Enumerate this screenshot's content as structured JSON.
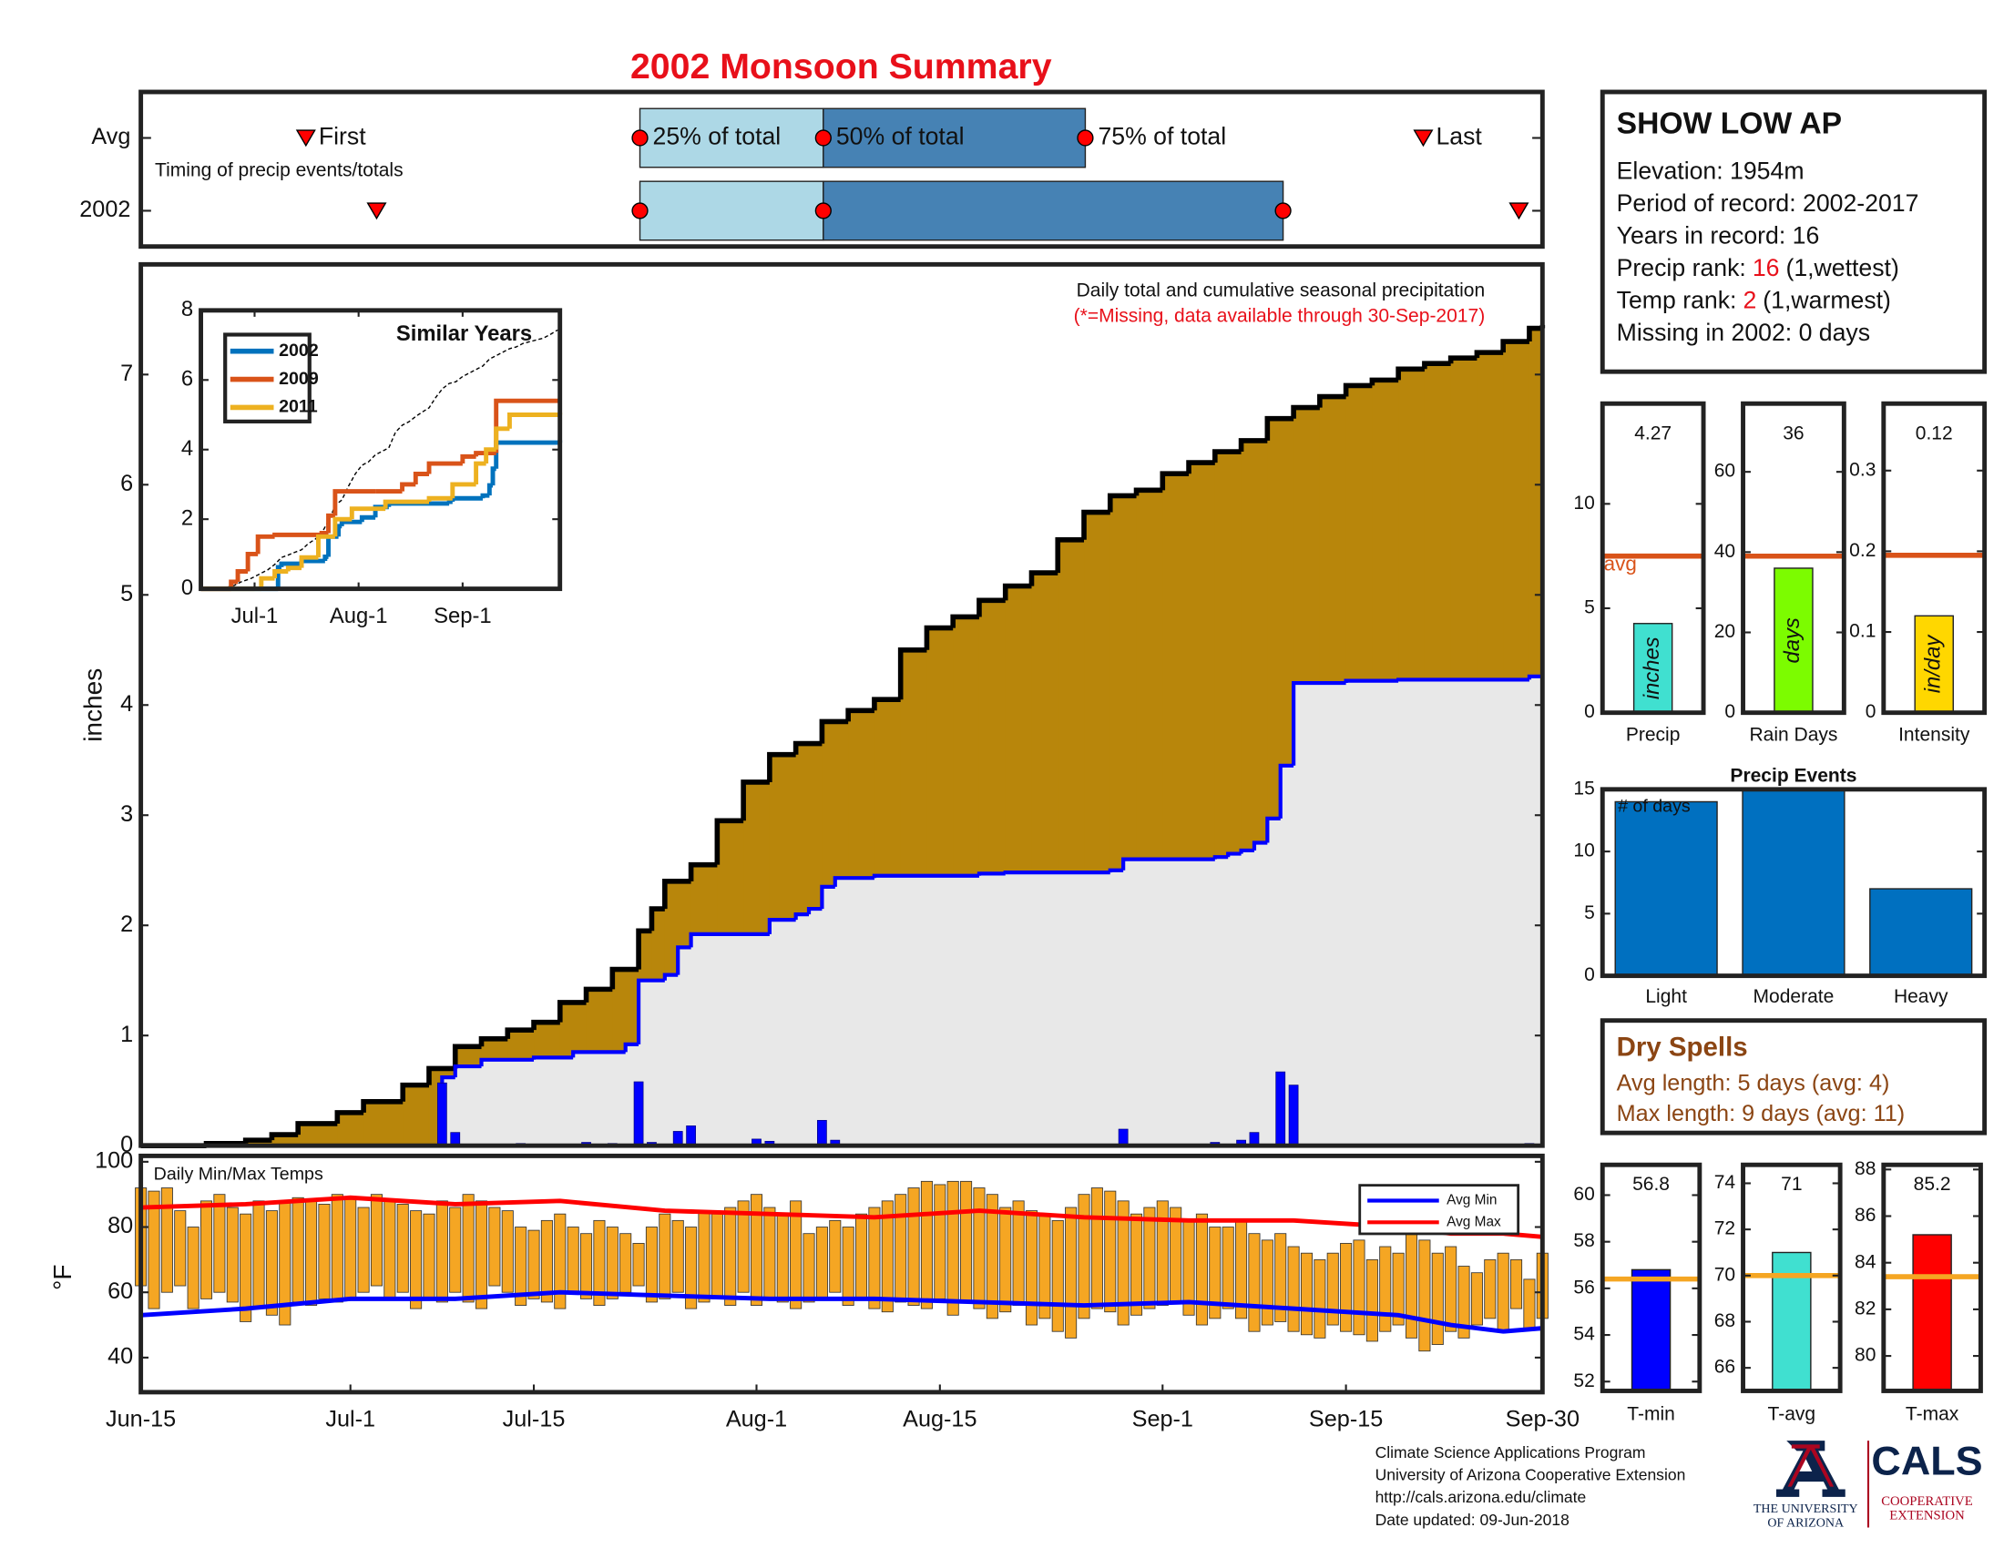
{
  "title": "2002 Monsoon Summary",
  "chart_data": [
    {
      "type": "timing",
      "annotation": "Timing of precip events/totals",
      "xlim": [
        0,
        107
      ],
      "labels": {
        "first": "First",
        "last": "Last",
        "q25": "25% of total",
        "q50": "50% of total",
        "q75": "75% of total"
      },
      "rows": [
        {
          "name": "Avg",
          "first": 12.6,
          "q25": 38.1,
          "q50": 52.1,
          "q75": 72.1,
          "last": 97.9
        },
        {
          "name": "2002",
          "first": 18,
          "q25": 38.1,
          "q50": 52.1,
          "q75": 87.2,
          "last": 105.2
        }
      ],
      "light_color": "#add8e6",
      "dark_color": "#4682b4",
      "marker_color": "#ff0000"
    },
    {
      "type": "step-area",
      "annotation": "Daily total and cumulative seasonal precipitation",
      "note": "(*=Missing, data available through 30-Sep-2017)",
      "ylabel": "inches",
      "xlim": [
        0,
        107
      ],
      "ylim": [
        0,
        8
      ],
      "yticks": [
        0,
        1,
        2,
        3,
        4,
        5,
        6,
        7
      ],
      "series": [
        {
          "color": "#b8860b",
          "outline": "#000000",
          "x": [
            0,
            5,
            8,
            10,
            12,
            15,
            17,
            20,
            22,
            24,
            26,
            28,
            30,
            32,
            34,
            36,
            38,
            39,
            40,
            42,
            44,
            46,
            48,
            50,
            52,
            54,
            56,
            58,
            60,
            62,
            64,
            66,
            68,
            70,
            72,
            74,
            76,
            78,
            80,
            82,
            84,
            86,
            88,
            90,
            92,
            94,
            96,
            98,
            100,
            102,
            104,
            106,
            107
          ],
          "values": [
            0,
            0.02,
            0.05,
            0.1,
            0.2,
            0.3,
            0.4,
            0.55,
            0.7,
            0.9,
            0.97,
            1.05,
            1.12,
            1.3,
            1.42,
            1.6,
            1.95,
            2.15,
            2.4,
            2.55,
            2.95,
            3.3,
            3.55,
            3.65,
            3.85,
            3.95,
            4.05,
            4.5,
            4.7,
            4.8,
            4.95,
            5.08,
            5.2,
            5.5,
            5.75,
            5.9,
            5.95,
            6.1,
            6.2,
            6.3,
            6.4,
            6.6,
            6.7,
            6.8,
            6.9,
            6.95,
            7.05,
            7.1,
            7.15,
            7.2,
            7.3,
            7.42,
            7.45
          ]
        },
        {
          "color": "#e8e8e8",
          "outline": "#0000ff",
          "x": [
            0,
            23,
            24,
            26,
            30,
            33,
            37,
            38,
            40,
            41,
            42,
            48,
            50,
            51,
            52,
            53,
            56,
            64,
            66,
            74,
            75,
            82,
            83,
            84,
            85,
            86,
            87,
            88,
            92,
            96,
            106,
            107
          ],
          "values": [
            0,
            0.62,
            0.72,
            0.78,
            0.8,
            0.85,
            0.92,
            1.5,
            1.55,
            1.8,
            1.92,
            2.05,
            2.1,
            2.15,
            2.35,
            2.43,
            2.45,
            2.47,
            2.48,
            2.5,
            2.6,
            2.62,
            2.65,
            2.68,
            2.75,
            2.97,
            3.45,
            4.2,
            4.22,
            4.23,
            4.26,
            4.27
          ]
        }
      ],
      "daily": {
        "color": "#0000ff",
        "x": [
          23,
          24,
          29,
          34,
          36,
          38,
          39,
          41,
          42,
          47,
          48,
          52,
          53,
          75,
          82,
          84,
          85,
          87,
          88,
          106
        ],
        "values": [
          0.57,
          0.12,
          0.02,
          0.03,
          0.02,
          0.58,
          0.03,
          0.13,
          0.18,
          0.06,
          0.04,
          0.23,
          0.05,
          0.15,
          0.03,
          0.05,
          0.12,
          0.67,
          0.55,
          0.02
        ]
      }
    },
    {
      "type": "line",
      "title": "Similar Years",
      "xlim": [
        0,
        107
      ],
      "ylim": [
        0,
        8
      ],
      "yticks": [
        0,
        2,
        4,
        6,
        8
      ],
      "xticks": [
        {
          "value": 16,
          "label": "Jul-1"
        },
        {
          "value": 47,
          "label": "Aug-1"
        },
        {
          "value": 78,
          "label": "Sep-1"
        }
      ],
      "legend": "upper left",
      "reference_color": "#000000",
      "series": [
        {
          "name": "2002",
          "color": "#0072bd",
          "x": [
            0,
            23,
            24,
            30,
            37,
            38,
            41,
            42,
            48,
            52,
            56,
            74,
            75,
            84,
            86,
            87,
            88,
            107
          ],
          "values": [
            0,
            0.62,
            0.72,
            0.8,
            0.92,
            1.5,
            1.8,
            1.92,
            2.05,
            2.35,
            2.45,
            2.5,
            2.6,
            2.68,
            2.97,
            3.45,
            4.2,
            4.27
          ]
        },
        {
          "name": "2009",
          "color": "#d95319",
          "x": [
            0,
            9,
            11,
            14,
            17,
            22,
            36,
            38,
            40,
            52,
            60,
            64,
            68,
            78,
            82,
            88,
            107
          ],
          "values": [
            0,
            0.2,
            0.5,
            1.0,
            1.5,
            1.55,
            1.6,
            2.1,
            2.8,
            2.8,
            3.0,
            3.3,
            3.6,
            3.8,
            3.9,
            5.4,
            5.4
          ]
        },
        {
          "name": "2011",
          "color": "#edb120",
          "x": [
            0,
            16,
            18,
            22,
            26,
            30,
            35,
            40,
            45,
            55,
            68,
            75,
            82,
            85,
            88,
            92,
            107
          ],
          "values": [
            0,
            0,
            0.3,
            0.5,
            0.6,
            0.9,
            1.5,
            2.0,
            2.3,
            2.5,
            2.6,
            3.0,
            3.6,
            4.0,
            4.6,
            5.0,
            5.06
          ]
        }
      ]
    },
    {
      "type": "range-bar",
      "title": "Daily Min/Max Temps",
      "ylabel": "°F",
      "xlim": [
        0,
        107
      ],
      "ylim": [
        29.4,
        101.8
      ],
      "yticks": [
        40,
        60,
        80,
        100
      ],
      "xticks": [
        {
          "value": 0,
          "label": "Jun-15"
        },
        {
          "value": 16,
          "label": "Jul-1"
        },
        {
          "value": 30,
          "label": "Jul-15"
        },
        {
          "value": 47,
          "label": "Aug-1"
        },
        {
          "value": 61,
          "label": "Aug-15"
        },
        {
          "value": 78,
          "label": "Sep-1"
        },
        {
          "value": 92,
          "label": "Sep-15"
        },
        {
          "value": 107,
          "label": "Sep-30"
        }
      ],
      "bar_color": "#f5a623",
      "legend": "upper right",
      "x": [
        0,
        1,
        2,
        3,
        4,
        5,
        6,
        7,
        8,
        9,
        10,
        11,
        12,
        13,
        14,
        15,
        16,
        17,
        18,
        19,
        20,
        21,
        22,
        23,
        24,
        25,
        26,
        27,
        28,
        29,
        30,
        31,
        32,
        33,
        34,
        35,
        36,
        37,
        38,
        39,
        40,
        41,
        42,
        43,
        44,
        45,
        46,
        47,
        48,
        49,
        50,
        51,
        52,
        53,
        54,
        55,
        56,
        57,
        58,
        59,
        60,
        61,
        62,
        63,
        64,
        65,
        66,
        67,
        68,
        69,
        70,
        71,
        72,
        73,
        74,
        75,
        76,
        77,
        78,
        79,
        80,
        81,
        82,
        83,
        84,
        85,
        86,
        87,
        88,
        89,
        90,
        91,
        92,
        93,
        94,
        95,
        96,
        97,
        98,
        99,
        100,
        101,
        102,
        103,
        104,
        105,
        106,
        107
      ],
      "min": [
        62,
        55,
        60,
        62,
        55,
        58,
        60,
        57,
        51,
        55,
        53,
        50,
        57,
        56,
        58,
        57,
        58,
        60,
        62,
        58,
        60,
        55,
        58,
        57,
        60,
        57,
        55,
        62,
        60,
        56,
        58,
        57,
        55,
        60,
        58,
        56,
        58,
        60,
        62,
        57,
        58,
        60,
        55,
        57,
        58,
        56,
        60,
        56,
        58,
        57,
        55,
        57,
        58,
        60,
        56,
        58,
        55,
        54,
        57,
        56,
        55,
        58,
        53,
        57,
        55,
        52,
        54,
        56,
        50,
        52,
        48,
        46,
        52,
        55,
        54,
        50,
        53,
        55,
        56,
        57,
        53,
        50,
        52,
        55,
        52,
        48,
        50,
        51,
        48,
        47,
        46,
        50,
        48,
        47,
        45,
        48,
        50,
        46,
        42,
        44,
        48,
        46,
        50,
        52,
        48,
        55,
        49,
        52
      ],
      "max": [
        92,
        91,
        92,
        85,
        80,
        88,
        90,
        86,
        84,
        88,
        85,
        88,
        89,
        88,
        87,
        90,
        89,
        86,
        90,
        88,
        87,
        85,
        84,
        88,
        86,
        90,
        88,
        86,
        85,
        80,
        79,
        82,
        84,
        80,
        78,
        82,
        80,
        78,
        75,
        80,
        84,
        82,
        80,
        85,
        84,
        86,
        88,
        90,
        86,
        84,
        88,
        78,
        80,
        82,
        80,
        84,
        86,
        88,
        90,
        92,
        94,
        93,
        94,
        94,
        92,
        90,
        86,
        88,
        85,
        84,
        82,
        86,
        90,
        92,
        91,
        88,
        84,
        86,
        88,
        86,
        82,
        84,
        80,
        80,
        82,
        78,
        76,
        78,
        74,
        72,
        70,
        72,
        75,
        76,
        70,
        74,
        72,
        78,
        76,
        72,
        74,
        68,
        66,
        70,
        72,
        70,
        64,
        72
      ],
      "series": [
        {
          "name": "Avg Min",
          "color": "#0000ff",
          "x": [
            0,
            8,
            16,
            24,
            32,
            40,
            48,
            56,
            64,
            72,
            80,
            88,
            96,
            100,
            104,
            107
          ],
          "values": [
            53,
            55,
            58,
            58,
            60,
            59,
            58,
            58,
            57,
            56,
            57,
            55,
            53,
            50,
            48,
            49
          ]
        },
        {
          "name": "Avg Max",
          "color": "#ff0000",
          "x": [
            0,
            8,
            16,
            24,
            32,
            40,
            48,
            56,
            64,
            72,
            80,
            88,
            96,
            100,
            104,
            107
          ],
          "values": [
            86,
            87,
            89,
            87,
            88,
            85,
            84,
            83,
            85,
            83,
            82,
            82,
            80,
            78,
            78,
            77
          ]
        }
      ]
    },
    {
      "type": "stat-bar",
      "category": "Precip",
      "value": 4.27,
      "unit": "inches",
      "avg": 7.5,
      "avg_label": "avg",
      "ylim": [
        0,
        14.8
      ],
      "yticks": [
        0,
        5,
        10
      ],
      "color": "#40e0d0",
      "avg_color": "#d95319"
    },
    {
      "type": "stat-bar",
      "category": "Rain Days",
      "value": 36,
      "unit": "days",
      "avg": 39,
      "ylim": [
        0,
        77
      ],
      "yticks": [
        0,
        20,
        40,
        60
      ],
      "color": "#7cfc00",
      "avg_color": "#d95319"
    },
    {
      "type": "stat-bar",
      "category": "Intensity",
      "value": 0.12,
      "unit": "in/day",
      "avg": 0.195,
      "ylim": [
        0,
        0.383
      ],
      "yticks": [
        0,
        {
          "value": 0.1,
          "label": "0.1"
        },
        {
          "value": 0.2,
          "label": "0.2"
        },
        {
          "value": 0.3,
          "label": "0.3"
        }
      ],
      "color": "#ffd700",
      "avg_color": "#d95319"
    },
    {
      "type": "bar",
      "title": "Precip Events",
      "annotation": "# of days",
      "categories": [
        "Light",
        "Moderate",
        "Heavy"
      ],
      "values": [
        14,
        15,
        7
      ],
      "ylim": [
        0,
        15
      ],
      "yticks": [
        0,
        5,
        10,
        15
      ],
      "color": "#0070c0"
    },
    {
      "type": "stat-bar",
      "category": "T-min",
      "value": 56.8,
      "avg": 56.4,
      "ylim": [
        51.6,
        61.3
      ],
      "yticks": [
        52,
        54,
        56,
        58,
        60
      ],
      "color": "#0000ff",
      "avg_color": "#f5a623"
    },
    {
      "type": "stat-bar",
      "category": "T-avg",
      "value": 71,
      "avg": 70,
      "ylim": [
        65,
        74.8
      ],
      "yticks": [
        66,
        68,
        70,
        72,
        74
      ],
      "color": "#40e0d0",
      "avg_color": "#f5a623"
    },
    {
      "type": "stat-bar",
      "category": "T-max",
      "value": 85.2,
      "avg": 83.4,
      "ylim": [
        78.5,
        88.2
      ],
      "yticks": [
        80,
        82,
        84,
        86,
        88
      ],
      "color": "#ff0000",
      "avg_color": "#f5a623"
    }
  ],
  "station": {
    "name": "SHOW LOW AP",
    "lines": [
      "Elevation: 1954m",
      "Period of record: 2002-2017",
      "Years in record: 16",
      {
        "label": "Precip rank:",
        "value": 16,
        "note": "(1,wettest)"
      },
      {
        "label": "Temp rank:",
        "value": 2,
        "note": "(1,warmest)"
      },
      "Missing in 2002: 0 days"
    ]
  },
  "dry_spells": {
    "title": "Dry Spells",
    "lines": [
      "Avg length: 5 days (avg: 4)",
      "Max length: 9 days (avg: 11)"
    ]
  },
  "footer": [
    "Climate Science Applications Program",
    "University of Arizona Cooperative Extension",
    "http://cals.arizona.edu/climate",
    "Date updated: 09-Jun-2018"
  ],
  "logo": {
    "university": [
      "THE UNIVERSITY",
      "OF ARIZONA"
    ],
    "cals": "CALS",
    "extension": [
      "COOPERATIVE",
      "EXTENSION"
    ]
  }
}
